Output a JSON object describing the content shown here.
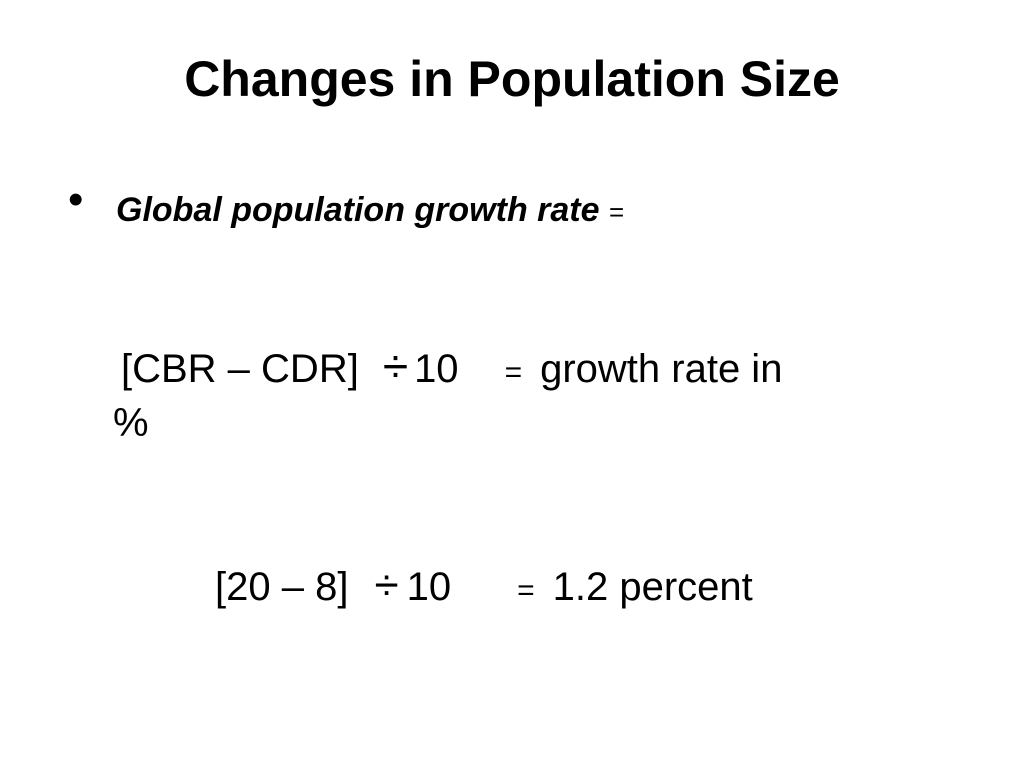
{
  "slide": {
    "title": "Changes in Population Size",
    "bullet": {
      "symbol": "•",
      "term": "Global population growth rate",
      "equals": "="
    },
    "formula_general": {
      "lhs": "[CBR – CDR]",
      "divide": "÷",
      "divisor": "10",
      "equals": "=",
      "result_line1": "growth rate in",
      "result_line2": "%"
    },
    "formula_example": {
      "lhs": "[20 – 8]",
      "divide": "÷",
      "divisor": "10",
      "equals": "=",
      "result": "1.2 percent"
    }
  }
}
